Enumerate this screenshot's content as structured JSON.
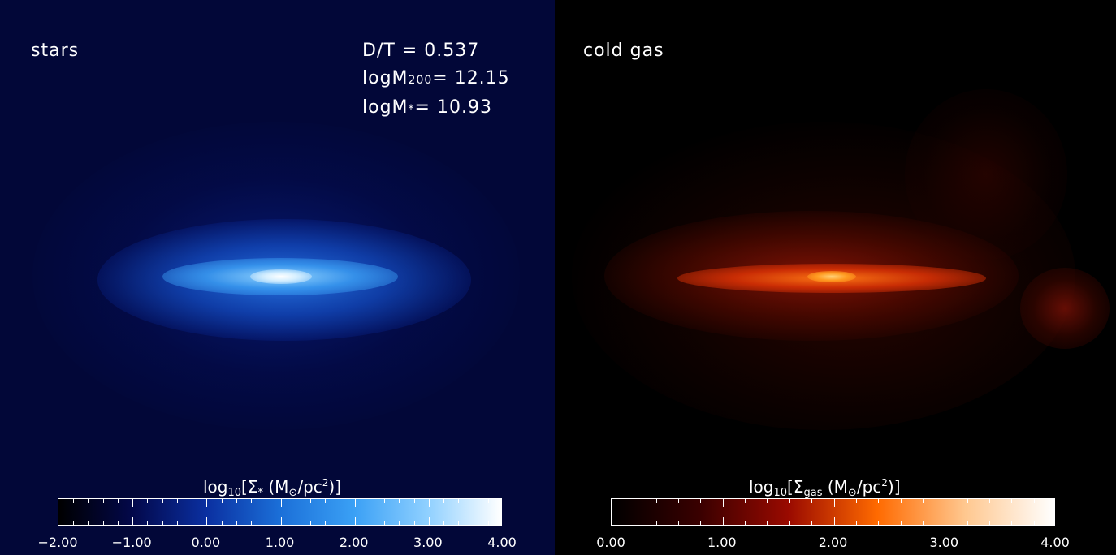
{
  "left_panel": {
    "label": "stars",
    "stats": {
      "dt_text": "D/T = 0.537",
      "m200_prefix": "logM",
      "m200_sub": "200",
      "m200_value": " = 12.15",
      "mstar_prefix": "logM",
      "mstar_sub": "*",
      "mstar_value": " = 10.93"
    },
    "colorbar": {
      "title_prefix": "log",
      "title_sub": "10",
      "title_main": "[Σ",
      "title_sub2": "*",
      "title_units": " (M",
      "title_sun": "⊙",
      "title_pc": "/pc",
      "title_sup": "2",
      "title_end": ")]",
      "tick_labels": [
        "−2.00",
        "−1.00",
        "0.00",
        "1.00",
        "2.00",
        "3.00",
        "4.00"
      ],
      "colors": [
        "#000000",
        "#03084a",
        "#0a2fa0",
        "#1b6fd8",
        "#3aa0f5",
        "#8fd0ff",
        "#ffffff"
      ]
    }
  },
  "right_panel": {
    "label": "cold gas",
    "colorbar": {
      "title_prefix": "log",
      "title_sub": "10",
      "title_main": "[Σ",
      "title_sub2": "gas",
      "title_units": " (M",
      "title_sun": "⊙",
      "title_pc": "/pc",
      "title_sup": "2",
      "title_end": ")]",
      "tick_labels": [
        "0.00",
        "1.00",
        "2.00",
        "3.00",
        "4.00"
      ],
      "colors": [
        "#000000",
        "#3a0000",
        "#9a0a00",
        "#ff6a00",
        "#ffc890",
        "#ffffff"
      ]
    }
  }
}
